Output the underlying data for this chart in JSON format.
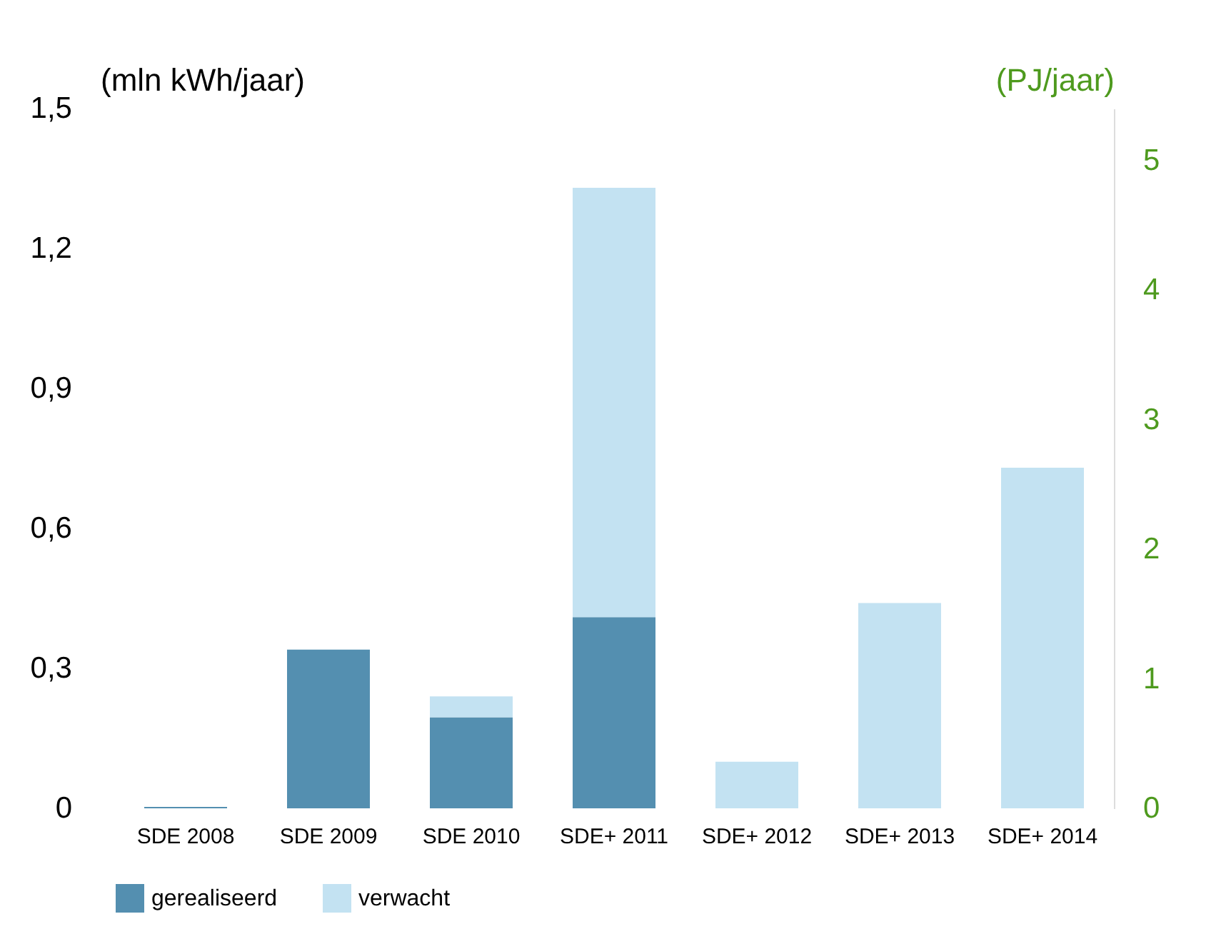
{
  "chart_data": {
    "type": "bar",
    "stacked": true,
    "ylabel": "(mln kWh/jaar)",
    "y2label": "(PJ/jaar)",
    "categories": [
      "SDE 2008",
      "SDE 2009",
      "SDE 2010",
      "SDE+ 2011",
      "SDE+ 2012",
      "SDE+ 2013",
      "SDE+ 2014"
    ],
    "series": [
      {
        "name": "gerealiseerd",
        "color": "#548fb0",
        "values": [
          0.003,
          0.34,
          0.195,
          0.41,
          null,
          null,
          null
        ]
      },
      {
        "name": "verwacht",
        "color": "#c3e2f2",
        "values": [
          null,
          null,
          0.045,
          0.92,
          0.1,
          0.44,
          0.73
        ]
      }
    ],
    "ylim": [
      0,
      1.5
    ],
    "yticks": [
      0,
      {
        "value": 0.3,
        "label": "0,3"
      },
      {
        "value": 0.6,
        "label": "0,6"
      },
      {
        "value": 0.9,
        "label": "0,9"
      },
      {
        "value": 1.2,
        "label": "1,2"
      },
      {
        "value": 1.5,
        "label": "1,5"
      }
    ],
    "y2lim": [
      0,
      5.4
    ],
    "y2ticks": [
      0,
      1,
      2,
      3,
      4,
      5
    ],
    "grid": false,
    "legend": "bottom"
  }
}
